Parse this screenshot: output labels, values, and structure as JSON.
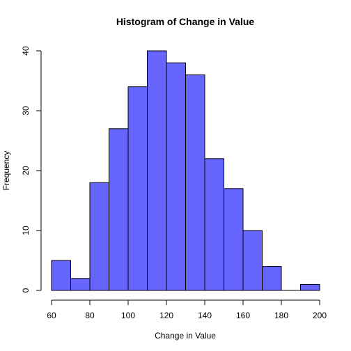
{
  "chart_data": {
    "type": "bar",
    "title": "Histogram of Change in Value",
    "xlabel": "Change in Value",
    "ylabel": "Frequency",
    "bar_color": "#6666ff",
    "bins": [
      {
        "from": 60,
        "to": 70,
        "count": 5
      },
      {
        "from": 70,
        "to": 80,
        "count": 2
      },
      {
        "from": 80,
        "to": 90,
        "count": 18
      },
      {
        "from": 90,
        "to": 100,
        "count": 27
      },
      {
        "from": 100,
        "to": 110,
        "count": 34
      },
      {
        "from": 110,
        "to": 120,
        "count": 40
      },
      {
        "from": 120,
        "to": 130,
        "count": 38
      },
      {
        "from": 130,
        "to": 140,
        "count": 36
      },
      {
        "from": 140,
        "to": 150,
        "count": 22
      },
      {
        "from": 150,
        "to": 160,
        "count": 17
      },
      {
        "from": 160,
        "to": 170,
        "count": 10
      },
      {
        "from": 170,
        "to": 180,
        "count": 4
      },
      {
        "from": 180,
        "to": 190,
        "count": 0
      },
      {
        "from": 190,
        "to": 200,
        "count": 1
      }
    ],
    "xlim": [
      60,
      200
    ],
    "ylim": [
      0,
      40
    ],
    "x_ticks": [
      60,
      80,
      100,
      120,
      140,
      160,
      180,
      200
    ],
    "y_ticks": [
      0,
      10,
      20,
      30,
      40
    ],
    "grid": false
  }
}
